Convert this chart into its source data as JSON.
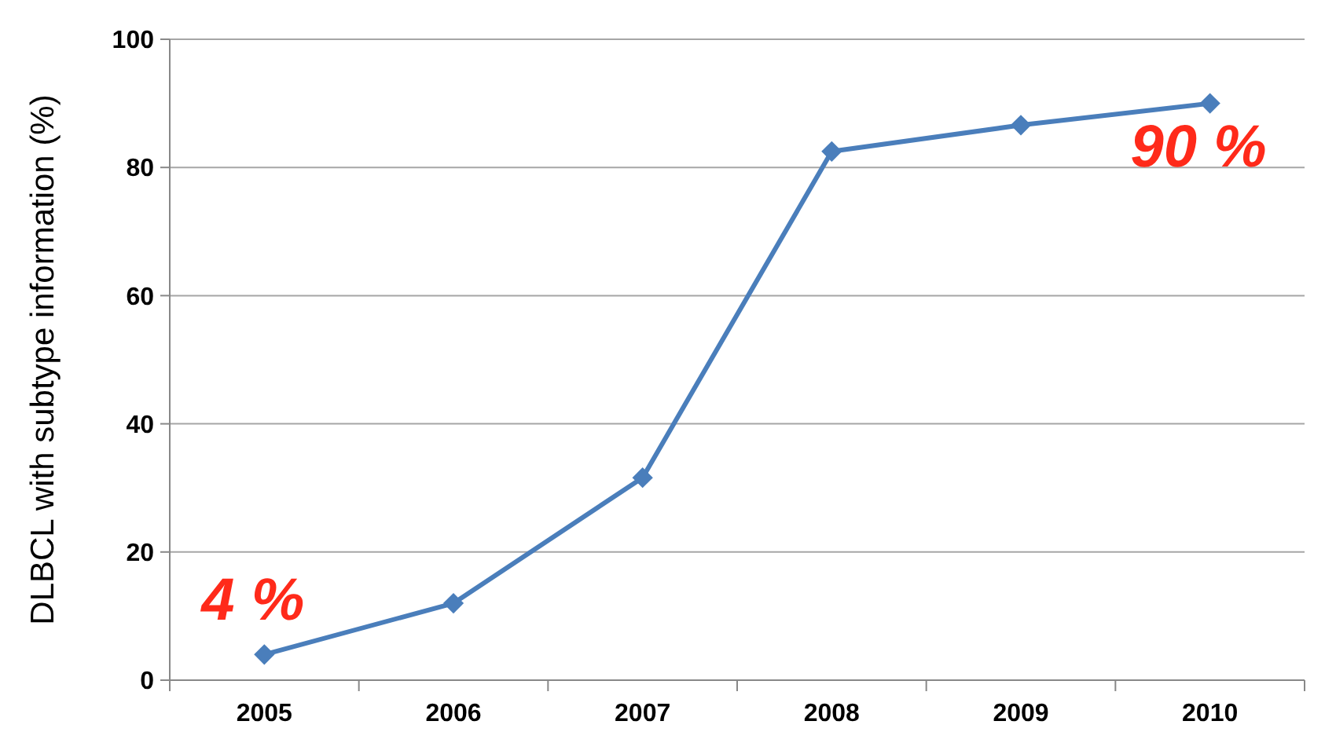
{
  "chart_data": {
    "type": "line",
    "ylabel": "DLBCL with subtype information (%)",
    "categories": [
      "2005",
      "2006",
      "2007",
      "2008",
      "2009",
      "2010"
    ],
    "series": [
      {
        "color": "#4a7ebb",
        "values": [
          4,
          12,
          31.6,
          82.5,
          86.6,
          90
        ]
      }
    ],
    "ylim": [
      0,
      100
    ],
    "yticks": [
      0,
      20,
      40,
      60,
      80,
      100
    ],
    "grid": "y",
    "marker": "diamond",
    "line_style": "solid",
    "annotations": [
      {
        "text": "4 %",
        "x": "2005",
        "y": 4
      },
      {
        "text": "90 %",
        "x": "2010",
        "y": 90
      }
    ]
  }
}
